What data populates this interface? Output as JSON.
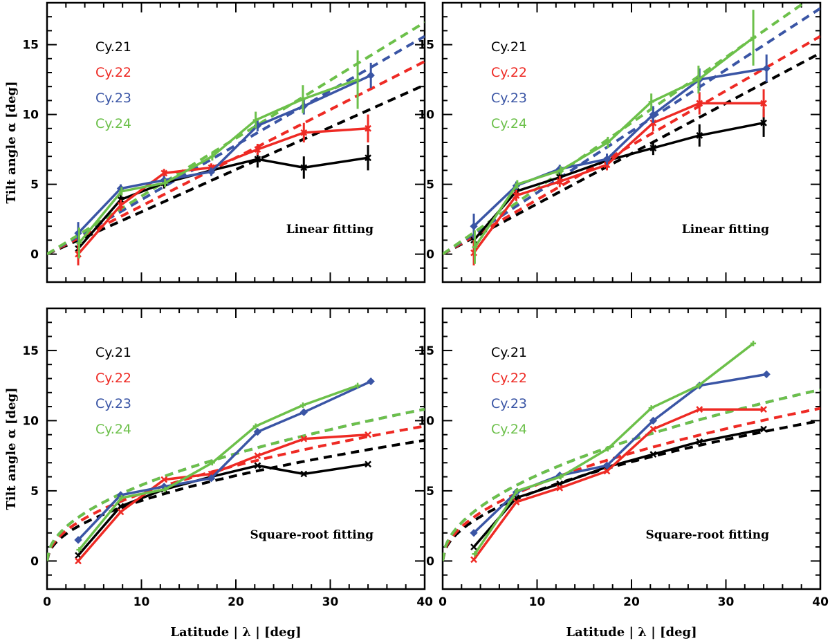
{
  "colors": {
    "cy21": "#000000",
    "cy22": "#ee2a24",
    "cy23": "#3a55a5",
    "cy24": "#6cc04a"
  },
  "chart_data": [
    {
      "type": "line",
      "panel": "top-left",
      "annotation": "Linear fitting",
      "ylabel": "Tilt angle α [deg]",
      "xlabel": "",
      "xlim": [
        0,
        40
      ],
      "ylim": [
        -2,
        18
      ],
      "xticks": [
        0,
        10,
        20,
        30,
        40
      ],
      "yticks": [
        0,
        5,
        10,
        15
      ],
      "show_xtick_labels": false,
      "legend": [
        "Cy.21",
        "Cy.22",
        "Cy.23",
        "Cy.24"
      ],
      "fit": "linear",
      "series": [
        {
          "name": "Cy.21",
          "color_key": "cy21",
          "marker": "x",
          "x": [
            3.3,
            7.8,
            12.4,
            17.4,
            22.3,
            27.2,
            34
          ],
          "y": [
            0.4,
            3.9,
            5.1,
            6.0,
            6.8,
            6.2,
            6.9
          ],
          "err": [
            0.6,
            0.4,
            0.4,
            0.4,
            0.6,
            0.8,
            0.9
          ],
          "fit_slope": 0.303,
          "fit_intercept": 0
        },
        {
          "name": "Cy.22",
          "color_key": "cy22",
          "marker": "x",
          "x": [
            3.3,
            7.8,
            12.4,
            17.4,
            22.3,
            27.2,
            34
          ],
          "y": [
            0.0,
            3.5,
            5.8,
            6.2,
            7.5,
            8.7,
            9.0
          ],
          "err": [
            0.8,
            0.4,
            0.3,
            0.3,
            0.4,
            0.7,
            1.0
          ],
          "fit_slope": 0.345,
          "fit_intercept": 0
        },
        {
          "name": "Cy.23",
          "color_key": "cy23",
          "marker": "d",
          "x": [
            3.3,
            7.8,
            12.4,
            17.4,
            22.3,
            27.2,
            34.3
          ],
          "y": [
            1.5,
            4.7,
            5.3,
            5.9,
            9.2,
            10.6,
            12.8
          ],
          "err": [
            0.8,
            0.3,
            0.3,
            0.3,
            0.4,
            0.6,
            0.9
          ],
          "fit_slope": 0.39,
          "fit_intercept": 0
        },
        {
          "name": "Cy.24",
          "color_key": "cy24",
          "marker": "+",
          "x": [
            3.4,
            7.9,
            12.5,
            17.5,
            22.1,
            27.1,
            32.9
          ],
          "y": [
            0.8,
            4.5,
            5.1,
            7.0,
            9.6,
            11.1,
            12.5
          ],
          "err": [
            1.1,
            0.3,
            0.3,
            0.3,
            0.6,
            1.0,
            2.1
          ],
          "fit_slope": 0.415,
          "fit_intercept": 0
        }
      ]
    },
    {
      "type": "line",
      "panel": "top-right",
      "annotation": "Linear fitting",
      "ylabel": "",
      "xlabel": "",
      "xlim": [
        0,
        40
      ],
      "ylim": [
        -2,
        18
      ],
      "xticks": [
        0,
        10,
        20,
        30,
        40
      ],
      "yticks": [
        0,
        5,
        10,
        15
      ],
      "show_xtick_labels": false,
      "legend": [
        "Cy.21",
        "Cy.22",
        "Cy.23",
        "Cy.24"
      ],
      "fit": "linear",
      "series": [
        {
          "name": "Cy.21",
          "color_key": "cy21",
          "marker": "x",
          "x": [
            3.3,
            7.8,
            12.4,
            17.4,
            22.3,
            27.2,
            34
          ],
          "y": [
            1.0,
            4.5,
            5.5,
            6.7,
            7.6,
            8.5,
            9.4
          ],
          "err": [
            0.8,
            0.4,
            0.4,
            0.4,
            0.5,
            0.8,
            1.0
          ],
          "fit_slope": 0.36,
          "fit_intercept": 0
        },
        {
          "name": "Cy.22",
          "color_key": "cy22",
          "marker": "x",
          "x": [
            3.3,
            7.8,
            12.4,
            17.4,
            22.3,
            27.2,
            34
          ],
          "y": [
            0.1,
            4.2,
            5.2,
            6.4,
            9.4,
            10.8,
            10.8
          ],
          "err": [
            0.9,
            0.4,
            0.4,
            0.4,
            0.6,
            0.8,
            1.0
          ],
          "fit_slope": 0.39,
          "fit_intercept": 0
        },
        {
          "name": "Cy.23",
          "color_key": "cy23",
          "marker": "d",
          "x": [
            3.3,
            7.8,
            12.4,
            17.4,
            22.3,
            27.2,
            34.3
          ],
          "y": [
            2.0,
            4.9,
            6.1,
            6.8,
            10.0,
            12.5,
            13.3
          ],
          "err": [
            0.9,
            0.3,
            0.3,
            0.4,
            0.6,
            0.8,
            1.0
          ],
          "fit_slope": 0.44,
          "fit_intercept": 0
        },
        {
          "name": "Cy.24",
          "color_key": "cy24",
          "marker": "+",
          "x": [
            3.4,
            7.9,
            12.5,
            17.5,
            22.1,
            27.1,
            32.9
          ],
          "y": [
            0.5,
            5.0,
            6.0,
            8.0,
            10.9,
            12.5,
            15.5
          ],
          "err": [
            1.2,
            0.3,
            0.3,
            0.4,
            0.6,
            1.0,
            2.0
          ],
          "fit_slope": 0.47,
          "fit_intercept": 0
        }
      ]
    },
    {
      "type": "line",
      "panel": "bottom-left",
      "annotation": "Square-root fitting",
      "ylabel": "Tilt angle α [deg]",
      "xlabel": "Latitude | λ | [deg]",
      "xlim": [
        0,
        40
      ],
      "ylim": [
        -2,
        18
      ],
      "xticks": [
        0,
        10,
        20,
        30,
        40
      ],
      "yticks": [
        0,
        5,
        10,
        15
      ],
      "xtick_labels": [
        "0",
        "10",
        "20",
        "30",
        "40"
      ],
      "show_xtick_labels": true,
      "legend": [
        "Cy.21",
        "Cy.22",
        "Cy.23",
        "Cy.24"
      ],
      "fit": "sqrt",
      "series": [
        {
          "name": "Cy.21",
          "color_key": "cy21",
          "marker": "x",
          "x": [
            3.3,
            7.8,
            12.4,
            17.4,
            22.3,
            27.2,
            34
          ],
          "y": [
            0.4,
            3.9,
            5.1,
            6.0,
            6.8,
            6.2,
            6.9
          ],
          "fit_coef": 1.36
        },
        {
          "name": "Cy.22",
          "color_key": "cy22",
          "marker": "x",
          "x": [
            3.3,
            7.8,
            12.4,
            17.4,
            22.3,
            27.2,
            34
          ],
          "y": [
            0.0,
            3.5,
            5.8,
            6.2,
            7.5,
            8.7,
            9.0
          ],
          "fit_coef": 1.52
        },
        {
          "name": "Cy.23",
          "color_key": "cy23",
          "marker": "d",
          "x": [
            3.3,
            7.8,
            12.4,
            17.4,
            22.3,
            27.2,
            34.3
          ],
          "y": [
            1.5,
            4.7,
            5.3,
            5.9,
            9.2,
            10.6,
            12.8
          ],
          "fit_coef": 1.71
        },
        {
          "name": "Cy.24",
          "color_key": "cy24",
          "marker": "+",
          "x": [
            3.4,
            7.9,
            12.5,
            17.5,
            22.1,
            27.1,
            32.9
          ],
          "y": [
            0.8,
            4.5,
            5.1,
            7.0,
            9.6,
            11.1,
            12.5
          ],
          "fit_coef": 1.71
        }
      ]
    },
    {
      "type": "line",
      "panel": "bottom-right",
      "annotation": "Square-root fitting",
      "ylabel": "",
      "xlabel": "Latitude | λ | [deg]",
      "xlim": [
        0,
        40
      ],
      "ylim": [
        -2,
        18
      ],
      "xticks": [
        0,
        10,
        20,
        30,
        40
      ],
      "yticks": [
        0,
        5,
        10,
        15
      ],
      "xtick_labels": [
        "0",
        "10",
        "20",
        "30",
        "40"
      ],
      "show_xtick_labels": true,
      "legend": [
        "Cy.21",
        "Cy.22",
        "Cy.23",
        "Cy.24"
      ],
      "fit": "sqrt",
      "series": [
        {
          "name": "Cy.21",
          "color_key": "cy21",
          "marker": "x",
          "x": [
            3.3,
            7.8,
            12.4,
            17.4,
            22.3,
            27.2,
            34
          ],
          "y": [
            1.0,
            4.5,
            5.5,
            6.7,
            7.6,
            8.5,
            9.4
          ],
          "fit_coef": 1.58
        },
        {
          "name": "Cy.22",
          "color_key": "cy22",
          "marker": "x",
          "x": [
            3.3,
            7.8,
            12.4,
            17.4,
            22.3,
            27.2,
            34
          ],
          "y": [
            0.1,
            4.2,
            5.2,
            6.4,
            9.4,
            10.8,
            10.8
          ],
          "fit_coef": 1.72
        },
        {
          "name": "Cy.23",
          "color_key": "cy23",
          "marker": "d",
          "x": [
            3.3,
            7.8,
            12.4,
            17.4,
            22.3,
            27.2,
            34.3
          ],
          "y": [
            2.0,
            4.9,
            6.1,
            6.8,
            10.0,
            12.5,
            13.3
          ],
          "fit_coef": 1.93
        },
        {
          "name": "Cy.24",
          "color_key": "cy24",
          "marker": "+",
          "x": [
            3.4,
            7.9,
            12.5,
            17.5,
            22.1,
            27.1,
            32.9
          ],
          "y": [
            0.5,
            5.0,
            6.0,
            8.0,
            10.9,
            12.5,
            15.5
          ],
          "fit_coef": 1.93
        }
      ]
    }
  ]
}
